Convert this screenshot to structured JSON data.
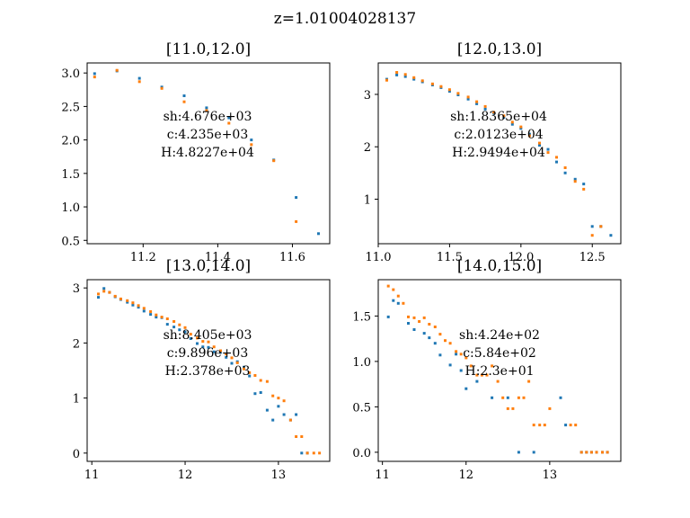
{
  "figure": {
    "suptitle": "z=1.01004028137"
  },
  "colors": {
    "series_a": "#1f77b4",
    "series_b": "#ff7f0e",
    "axis": "#000000"
  },
  "chart_data": [
    {
      "type": "scatter",
      "title": "[11.0,12.0]",
      "xlim": [
        11.05,
        11.7
      ],
      "ylim": [
        0.45,
        3.15
      ],
      "xticks": [
        11.2,
        11.4,
        11.6
      ],
      "xticklabels": [
        "11.2",
        "11.4",
        "11.6"
      ],
      "yticks": [
        0.5,
        1.0,
        1.5,
        2.0,
        2.5,
        3.0
      ],
      "yticklabels": [
        "0.5",
        "1.0",
        "1.5",
        "2.0",
        "2.5",
        "3.0"
      ],
      "annotation": [
        "sh:4.676e+03",
        "c:4.235e+03",
        "H:4.8227e+04"
      ],
      "series": [
        {
          "x": [
            11.07,
            11.13,
            11.19,
            11.25,
            11.31,
            11.37,
            11.43,
            11.49,
            11.55,
            11.61,
            11.67
          ],
          "y": [
            2.99,
            3.03,
            2.92,
            2.79,
            2.66,
            2.48,
            2.33,
            2.0,
            1.7,
            1.14,
            0.6
          ]
        },
        {
          "x": [
            11.07,
            11.13,
            11.19,
            11.25,
            11.31,
            11.37,
            11.43,
            11.49,
            11.55,
            11.61
          ],
          "y": [
            2.94,
            3.04,
            2.87,
            2.77,
            2.57,
            2.44,
            2.25,
            1.93,
            1.69,
            0.78
          ]
        }
      ]
    },
    {
      "type": "scatter",
      "title": "[12.0,13.0]",
      "xlim": [
        11.0,
        12.7
      ],
      "ylim": [
        0.15,
        3.6
      ],
      "xticks": [
        11.0,
        11.5,
        12.0,
        12.5
      ],
      "xticklabels": [
        "11.0",
        "11.5",
        "12.0",
        "12.5"
      ],
      "yticks": [
        1,
        2,
        3
      ],
      "yticklabels": [
        "1",
        "2",
        "3"
      ],
      "annotation": [
        "sh:1.8365e+04",
        "c:2.0123e+04",
        "H:2.9494e+04"
      ],
      "series": [
        {
          "x": [
            11.06,
            11.13,
            11.19,
            11.25,
            11.31,
            11.38,
            11.44,
            11.5,
            11.56,
            11.63,
            11.69,
            11.75,
            11.81,
            11.88,
            11.94,
            12.0,
            12.06,
            12.13,
            12.19,
            12.25,
            12.31,
            12.38,
            12.44,
            12.5,
            12.56,
            12.63
          ],
          "y": [
            3.29,
            3.37,
            3.34,
            3.29,
            3.24,
            3.18,
            3.13,
            3.06,
            2.99,
            2.91,
            2.82,
            2.72,
            2.64,
            2.56,
            2.43,
            2.35,
            2.24,
            2.03,
            1.95,
            1.71,
            1.5,
            1.38,
            1.29,
            0.48,
            0.48,
            0.31
          ]
        },
        {
          "x": [
            11.06,
            11.13,
            11.19,
            11.25,
            11.31,
            11.38,
            11.44,
            11.5,
            11.56,
            11.63,
            11.69,
            11.75,
            11.81,
            11.88,
            11.94,
            12.0,
            12.06,
            12.13,
            12.19,
            12.25,
            12.31,
            12.38,
            12.44,
            12.5,
            12.56
          ],
          "y": [
            3.27,
            3.42,
            3.38,
            3.32,
            3.26,
            3.2,
            3.15,
            3.09,
            3.02,
            2.95,
            2.86,
            2.77,
            2.66,
            2.59,
            2.47,
            2.38,
            2.21,
            2.07,
            1.89,
            1.8,
            1.6,
            1.34,
            1.19,
            0.31,
            0.48
          ]
        }
      ]
    },
    {
      "type": "scatter",
      "title": "[13.0,14.0]",
      "xlim": [
        10.95,
        13.55
      ],
      "ylim": [
        -0.15,
        3.15
      ],
      "xticks": [
        11,
        12,
        13
      ],
      "xticklabels": [
        "11",
        "12",
        "13"
      ],
      "yticks": [
        0,
        1,
        2,
        3
      ],
      "yticklabels": [
        "0",
        "1",
        "2",
        "3"
      ],
      "annotation": [
        "sh:8.405e+03",
        "c:9.896e+03",
        "H:2.378e+03"
      ],
      "series": [
        {
          "x": [
            11.07,
            11.13,
            11.19,
            11.25,
            11.31,
            11.38,
            11.44,
            11.5,
            11.56,
            11.63,
            11.69,
            11.75,
            11.81,
            11.88,
            11.94,
            12.0,
            12.06,
            12.13,
            12.19,
            12.25,
            12.31,
            12.38,
            12.44,
            12.5,
            12.56,
            12.63,
            12.69,
            12.75,
            12.81,
            12.88,
            12.94,
            13.0,
            13.06,
            13.13,
            13.19,
            13.25,
            13.31
          ],
          "y": [
            2.83,
            2.99,
            2.92,
            2.84,
            2.79,
            2.74,
            2.69,
            2.65,
            2.58,
            2.52,
            2.47,
            2.46,
            2.34,
            2.29,
            2.24,
            2.2,
            2.08,
            1.99,
            1.93,
            1.92,
            1.84,
            1.83,
            1.74,
            1.63,
            1.66,
            1.56,
            1.4,
            1.08,
            1.1,
            0.78,
            0.6,
            0.85,
            0.7,
            0.6,
            0.7,
            0.0,
            0.0
          ]
        },
        {
          "x": [
            11.07,
            11.13,
            11.19,
            11.25,
            11.31,
            11.38,
            11.44,
            11.5,
            11.56,
            11.63,
            11.69,
            11.75,
            11.81,
            11.88,
            11.94,
            12.0,
            12.06,
            12.13,
            12.19,
            12.25,
            12.31,
            12.38,
            12.44,
            12.5,
            12.56,
            12.63,
            12.69,
            12.75,
            12.81,
            12.88,
            12.94,
            13.0,
            13.06,
            13.13,
            13.19,
            13.25,
            13.31,
            13.38,
            13.44
          ],
          "y": [
            2.89,
            2.94,
            2.92,
            2.85,
            2.8,
            2.77,
            2.73,
            2.68,
            2.63,
            2.57,
            2.51,
            2.47,
            2.44,
            2.39,
            2.33,
            2.28,
            2.16,
            2.09,
            2.03,
            2.02,
            1.93,
            1.86,
            1.8,
            1.73,
            1.64,
            1.53,
            1.46,
            1.41,
            1.32,
            1.3,
            1.04,
            1.0,
            0.95,
            0.6,
            0.3,
            0.3,
            0.0,
            0.0,
            0.0
          ]
        }
      ]
    },
    {
      "type": "scatter",
      "title": "[14.0,15.0]",
      "xlim": [
        10.95,
        13.85
      ],
      "ylim": [
        -0.1,
        1.9
      ],
      "xticks": [
        11,
        12,
        13
      ],
      "xticklabels": [
        "11",
        "12",
        "13"
      ],
      "yticks": [
        0.0,
        0.5,
        1.0,
        1.5
      ],
      "yticklabels": [
        "0.0",
        "0.5",
        "1.0",
        "1.5"
      ],
      "annotation": [
        "sh:4.24e+02",
        "c:5.84e+02",
        "H:2.3e+01"
      ],
      "series": [
        {
          "x": [
            11.07,
            11.13,
            11.19,
            11.31,
            11.38,
            11.5,
            11.56,
            11.63,
            11.69,
            11.81,
            11.88,
            11.94,
            12.0,
            12.13,
            12.31,
            12.5,
            12.63,
            12.81,
            13.13,
            13.19,
            13.38,
            13.44,
            13.5,
            13.56,
            13.63,
            13.69
          ],
          "y": [
            1.49,
            1.67,
            1.64,
            1.42,
            1.35,
            1.31,
            1.26,
            1.2,
            1.07,
            0.96,
            1.08,
            0.9,
            0.7,
            0.78,
            0.6,
            0.6,
            0.0,
            0.0,
            0.6,
            0.3,
            0.0,
            0.0,
            0.0,
            0.0,
            0.0,
            0.0
          ]
        },
        {
          "x": [
            11.07,
            11.13,
            11.19,
            11.25,
            11.31,
            11.38,
            11.44,
            11.5,
            11.56,
            11.63,
            11.69,
            11.75,
            11.81,
            11.88,
            11.94,
            12.0,
            12.06,
            12.13,
            12.19,
            12.25,
            12.31,
            12.38,
            12.44,
            12.5,
            12.56,
            12.63,
            12.69,
            12.75,
            12.81,
            12.88,
            12.94,
            13.0,
            13.25,
            13.31,
            13.38,
            13.44,
            13.5,
            13.56,
            13.63,
            13.69
          ],
          "y": [
            1.83,
            1.79,
            1.72,
            1.64,
            1.49,
            1.48,
            1.44,
            1.48,
            1.41,
            1.38,
            1.3,
            1.23,
            1.2,
            1.11,
            1.08,
            1.04,
            0.95,
            0.85,
            0.85,
            0.85,
            0.95,
            0.78,
            0.6,
            0.48,
            0.48,
            0.6,
            0.6,
            0.78,
            0.3,
            0.3,
            0.3,
            0.48,
            0.3,
            0.3,
            0.0,
            0.0,
            0.0,
            0.0,
            0.0,
            0.0
          ]
        }
      ]
    }
  ]
}
